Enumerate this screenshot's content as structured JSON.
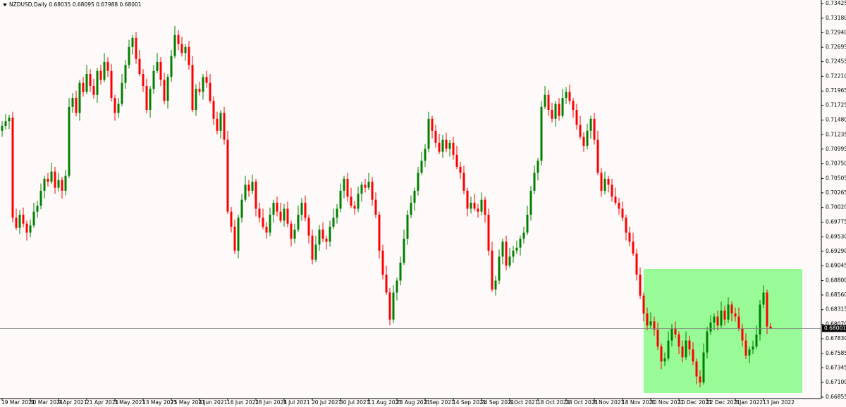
{
  "chart_data": {
    "type": "candlestick",
    "symbol": "NZDUSD,Daily",
    "up_color": "#008000",
    "down_color": "#ff0000",
    "ylim": [
      0.66831,
      0.73484
    ],
    "yticks": [
      0.73425,
      {
        "value": 0.7318,
        "label": "0.73180"
      },
      {
        "value": 0.7294,
        "label": "0.72940"
      },
      0.72695,
      0.72455,
      {
        "value": 0.7221,
        "label": "0.72210"
      },
      0.71965,
      0.71725,
      {
        "value": 0.7148,
        "label": "0.71480"
      },
      0.71235,
      0.70995,
      {
        "value": 0.7075,
        "label": "0.70750"
      },
      0.70505,
      0.70265,
      {
        "value": 0.7002,
        "label": "0.70020"
      },
      0.69775,
      {
        "value": 0.6953,
        "label": "0.69530"
      },
      {
        "value": 0.6929,
        "label": "0.69290"
      },
      0.69045,
      {
        "value": 0.688,
        "label": "0.68800"
      },
      {
        "value": 0.6856,
        "label": "0.68560"
      },
      0.68315,
      {
        "value": 0.6807,
        "label": "0.68070"
      },
      {
        "value": 0.6783,
        "label": "0.67830"
      },
      0.67585,
      0.67345,
      {
        "value": 0.671,
        "label": "0.67100"
      },
      0.66855
    ],
    "categories": [
      "19 Mar 2021",
      null,
      null,
      null,
      null,
      null,
      null,
      null,
      "30 Mar 2021",
      null,
      null,
      null,
      null,
      null,
      null,
      null,
      "9 Apr 2021",
      null,
      null,
      null,
      null,
      null,
      null,
      null,
      "21 Apr 2021",
      null,
      null,
      null,
      null,
      null,
      null,
      null,
      "3 May 2021",
      null,
      null,
      null,
      null,
      null,
      null,
      null,
      "13 May 2021",
      null,
      null,
      null,
      null,
      null,
      null,
      null,
      "25 May 2021",
      null,
      null,
      null,
      null,
      null,
      null,
      null,
      "4 Jun 2021",
      null,
      null,
      null,
      null,
      null,
      null,
      null,
      "16 Jun 2021",
      null,
      null,
      null,
      null,
      null,
      null,
      null,
      "28 Jun 2021",
      null,
      null,
      null,
      null,
      null,
      null,
      null,
      "8 Jul 2021",
      null,
      null,
      null,
      null,
      null,
      null,
      null,
      "20 Jul 2021",
      null,
      null,
      null,
      null,
      null,
      null,
      null,
      "30 Jul 2021",
      null,
      null,
      null,
      null,
      null,
      null,
      null,
      "11 Aug 2021",
      null,
      null,
      null,
      null,
      null,
      null,
      null,
      "23 Aug 2021",
      null,
      null,
      null,
      null,
      null,
      null,
      null,
      "2 Sep 2021",
      null,
      null,
      null,
      null,
      null,
      null,
      null,
      "14 Sep 2021",
      null,
      null,
      null,
      null,
      null,
      null,
      null,
      "24 Sep 2021",
      null,
      null,
      null,
      null,
      null,
      null,
      null,
      "6 Oct 2021",
      null,
      null,
      null,
      null,
      null,
      null,
      null,
      "18 Oct 2021",
      null,
      null,
      null,
      null,
      null,
      null,
      null,
      "28 Oct 2021",
      null,
      null,
      null,
      null,
      null,
      null,
      null,
      "8 Nov 2021",
      null,
      null,
      null,
      null,
      null,
      null,
      null,
      "18 Nov 2021",
      null,
      null,
      null,
      null,
      null,
      null,
      null,
      "30 Nov 2021",
      null,
      null,
      null,
      null,
      null,
      null,
      null,
      "10 Dec 2021",
      null,
      null,
      null,
      null,
      null,
      null,
      null,
      "22 Dec 2021",
      null,
      null,
      null,
      null,
      null,
      null,
      null,
      "3 Jan 2022",
      null,
      null,
      null,
      null,
      null,
      null,
      null,
      "13 Jan 2022",
      null,
      null
    ],
    "open": [
      0.713,
      0.7138,
      0.7146,
      0.7152,
      0.6985,
      0.6968,
      0.699,
      0.6975,
      0.696,
      0.6972,
      0.6995,
      0.7005,
      0.703,
      0.705,
      0.7045,
      0.7062,
      0.7035,
      0.7048,
      0.703,
      0.7055,
      0.717,
      0.7185,
      0.716,
      0.721,
      0.7195,
      0.7225,
      0.7205,
      0.719,
      0.723,
      0.7215,
      0.7245,
      0.723,
      0.7185,
      0.716,
      0.7175,
      0.721,
      0.724,
      0.727,
      0.7285,
      0.725,
      0.7225,
      0.7205,
      0.7165,
      0.72,
      0.723,
      0.7245,
      0.7215,
      0.718,
      0.722,
      0.7255,
      0.729,
      0.7275,
      0.726,
      0.727,
      0.724,
      0.7165,
      0.72,
      0.7195,
      0.722,
      0.721,
      0.718,
      0.715,
      0.713,
      0.716,
      0.7115,
      0.6995,
      0.697,
      0.693,
      0.6985,
      0.7015,
      0.704,
      0.703,
      0.7045,
      0.7,
      0.6985,
      0.697,
      0.696,
      0.699,
      0.701,
      0.6995,
      0.698,
      0.7,
      0.6975,
      0.695,
      0.6965,
      0.699,
      0.701,
      0.6985,
      0.6955,
      0.6915,
      0.694,
      0.6965,
      0.695,
      0.6945,
      0.697,
      0.6985,
      0.7,
      0.703,
      0.705,
      0.702,
      0.7005,
      0.7,
      0.7025,
      0.704,
      0.7035,
      0.7045,
      0.7015,
      0.699,
      0.693,
      0.689,
      0.686,
      0.6815,
      0.686,
      0.688,
      0.691,
      0.695,
      0.699,
      0.701,
      0.703,
      0.706,
      0.708,
      0.71,
      0.715,
      0.713,
      0.711,
      0.7095,
      0.7115,
      0.71,
      0.711,
      0.709,
      0.707,
      0.706,
      0.703,
      0.7,
      0.701,
      0.7,
      0.6995,
      0.7015,
      0.699,
      0.693,
      0.6865,
      0.688,
      0.692,
      0.6945,
      0.6905,
      0.692,
      0.693,
      0.6935,
      0.695,
      0.696,
      0.699,
      0.703,
      0.706,
      0.708,
      0.717,
      0.719,
      0.7165,
      0.715,
      0.7175,
      0.7155,
      0.7185,
      0.7195,
      0.718,
      0.7165,
      0.714,
      0.712,
      0.7105,
      0.713,
      0.715,
      0.7115,
      0.706,
      0.703,
      0.705,
      0.704,
      0.702,
      0.701,
      0.7,
      0.6985,
      0.696,
      0.6945,
      0.6925,
      0.689,
      0.6855,
      0.6825,
      0.6805,
      0.6812,
      0.6798,
      0.677,
      0.6745,
      0.675,
      0.678,
      0.68,
      0.679,
      0.677,
      0.6752,
      0.678,
      0.6765,
      0.6745,
      0.672,
      0.671,
      0.676,
      0.6795,
      0.681,
      0.682,
      0.6805,
      0.683,
      0.6815,
      0.684,
      0.6825,
      0.682,
      0.68,
      0.678,
      0.6755,
      0.6765,
      0.677,
      0.679,
      0.684,
      0.686,
      0.68035
    ],
    "high": [
      0.7146,
      0.7158,
      0.7157,
      0.7162,
      0.7,
      0.6998,
      0.7002,
      0.698,
      0.6982,
      0.701,
      0.7013,
      0.7042,
      0.7055,
      0.706,
      0.7077,
      0.707,
      0.706,
      0.7053,
      0.7065,
      0.7185,
      0.7193,
      0.7197,
      0.7215,
      0.722,
      0.724,
      0.7233,
      0.7217,
      0.7235,
      0.724,
      0.726,
      0.7253,
      0.7242,
      0.719,
      0.7185,
      0.7225,
      0.7248,
      0.7282,
      0.729,
      0.7295,
      0.7265,
      0.7233,
      0.7217,
      0.7205,
      0.724,
      0.726,
      0.7253,
      0.7227,
      0.7225,
      0.7265,
      0.7305,
      0.7298,
      0.7287,
      0.7275,
      0.728,
      0.7255,
      0.7208,
      0.7212,
      0.7225,
      0.723,
      0.7225,
      0.7188,
      0.7162,
      0.7165,
      0.717,
      0.713,
      0.7003,
      0.6982,
      0.699,
      0.7025,
      0.7055,
      0.7048,
      0.7057,
      0.705,
      0.701,
      0.7,
      0.6978,
      0.7002,
      0.7015,
      0.702,
      0.701,
      0.7008,
      0.7012,
      0.698,
      0.6975,
      0.7005,
      0.7018,
      0.7022,
      0.699,
      0.6965,
      0.6955,
      0.6973,
      0.6977,
      0.6955,
      0.698,
      0.7,
      0.7008,
      0.7042,
      0.7055,
      0.706,
      0.7035,
      0.7013,
      0.7037,
      0.7045,
      0.705,
      0.706,
      0.7053,
      0.7027,
      0.6995,
      0.694,
      0.6905,
      0.6868,
      0.6872,
      0.6885,
      0.692,
      0.6965,
      0.6998,
      0.7022,
      0.7035,
      0.707,
      0.7095,
      0.7108,
      0.7162,
      0.7155,
      0.714,
      0.7125,
      0.7123,
      0.7127,
      0.7115,
      0.712,
      0.7105,
      0.7078,
      0.7072,
      0.7035,
      0.702,
      0.7025,
      0.7008,
      0.7027,
      0.702,
      0.7,
      0.6945,
      0.6888,
      0.6932,
      0.695,
      0.6955,
      0.6935,
      0.6938,
      0.6947,
      0.6955,
      0.697,
      0.7005,
      0.7038,
      0.7072,
      0.7085,
      0.718,
      0.7205,
      0.7198,
      0.7177,
      0.718,
      0.7185,
      0.72,
      0.7203,
      0.7207,
      0.7185,
      0.7175,
      0.7155,
      0.7128,
      0.7142,
      0.7155,
      0.716,
      0.713,
      0.7068,
      0.7062,
      0.7055,
      0.705,
      0.7035,
      0.7018,
      0.7012,
      0.699,
      0.697,
      0.696,
      0.6933,
      0.6902,
      0.686,
      0.6835,
      0.6827,
      0.682,
      0.681,
      0.6775,
      0.676,
      0.6795,
      0.6808,
      0.6812,
      0.6795,
      0.678,
      0.6795,
      0.6788,
      0.6777,
      0.675,
      0.673,
      0.6775,
      0.6803,
      0.6822,
      0.6825,
      0.683,
      0.6845,
      0.6838,
      0.6852,
      0.6845,
      0.6835,
      0.6835,
      0.6808,
      0.6792,
      0.677,
      0.678,
      0.6805,
      0.6848,
      0.6872,
      0.6865,
      0.68095
    ],
    "low": [
      0.712,
      0.7132,
      0.7133,
      0.6977,
      0.6964,
      0.6958,
      0.6969,
      0.6947,
      0.6952,
      0.6968,
      0.6985,
      0.6999,
      0.7017,
      0.7037,
      0.7041,
      0.7025,
      0.7029,
      0.7017,
      0.7022,
      0.7051,
      0.716,
      0.7154,
      0.7147,
      0.7187,
      0.7191,
      0.7195,
      0.7184,
      0.7177,
      0.7207,
      0.7211,
      0.722,
      0.7179,
      0.7147,
      0.7152,
      0.7171,
      0.72,
      0.7234,
      0.7257,
      0.7242,
      0.7221,
      0.7195,
      0.7159,
      0.7152,
      0.7192,
      0.7226,
      0.7205,
      0.7174,
      0.7167,
      0.7212,
      0.7251,
      0.7265,
      0.7254,
      0.7247,
      0.7232,
      0.7161,
      0.7155,
      0.7189,
      0.7182,
      0.7202,
      0.7176,
      0.714,
      0.7124,
      0.7117,
      0.7107,
      0.6991,
      0.696,
      0.6924,
      0.6917,
      0.6977,
      0.7011,
      0.702,
      0.7024,
      0.6987,
      0.6977,
      0.6966,
      0.695,
      0.6954,
      0.6977,
      0.6987,
      0.6976,
      0.697,
      0.6969,
      0.6937,
      0.6942,
      0.6961,
      0.698,
      0.6979,
      0.6942,
      0.6907,
      0.6911,
      0.693,
      0.6944,
      0.6932,
      0.6937,
      0.6966,
      0.6975,
      0.6994,
      0.7017,
      0.7012,
      0.7001,
      0.699,
      0.6994,
      0.7012,
      0.7027,
      0.7031,
      0.7005,
      0.6984,
      0.6917,
      0.6882,
      0.6856,
      0.6805,
      0.6809,
      0.6847,
      0.6872,
      0.6906,
      0.694,
      0.6984,
      0.6997,
      0.7022,
      0.7056,
      0.707,
      0.7094,
      0.7117,
      0.7102,
      0.7091,
      0.7085,
      0.7094,
      0.7087,
      0.7082,
      0.7066,
      0.705,
      0.7024,
      0.6987,
      0.6992,
      0.6996,
      0.6985,
      0.6989,
      0.6977,
      0.6922,
      0.6861,
      0.6855,
      0.6874,
      0.6907,
      0.6897,
      0.6901,
      0.691,
      0.6924,
      0.6922,
      0.6942,
      0.6956,
      0.698,
      0.7024,
      0.7047,
      0.7072,
      0.7166,
      0.7155,
      0.7144,
      0.7137,
      0.7147,
      0.7151,
      0.7175,
      0.7174,
      0.7152,
      0.7132,
      0.7116,
      0.7095,
      0.7099,
      0.7117,
      0.7107,
      0.7056,
      0.702,
      0.7024,
      0.7027,
      0.7012,
      0.7006,
      0.699,
      0.6979,
      0.6947,
      0.6937,
      0.6921,
      0.688,
      0.6849,
      0.6812,
      0.6797,
      0.6801,
      0.6788,
      0.6764,
      0.6732,
      0.6737,
      0.6746,
      0.677,
      0.6784,
      0.6757,
      0.6744,
      0.6748,
      0.6755,
      0.6739,
      0.6707,
      0.6702,
      0.6706,
      0.675,
      0.6789,
      0.6797,
      0.6797,
      0.6801,
      0.6805,
      0.6809,
      0.6812,
      0.6812,
      0.6796,
      0.677,
      0.6749,
      0.6742,
      0.6757,
      0.6766,
      0.678,
      0.6834,
      0.67905,
      0.67988
    ],
    "close": [
      0.7138,
      0.7146,
      0.7152,
      0.6985,
      0.6968,
      0.699,
      0.6975,
      0.696,
      0.6972,
      0.6995,
      0.7005,
      0.703,
      0.705,
      0.7045,
      0.7062,
      0.7035,
      0.7048,
      0.703,
      0.7055,
      0.717,
      0.7185,
      0.716,
      0.721,
      0.7195,
      0.7225,
      0.7205,
      0.719,
      0.723,
      0.7215,
      0.7245,
      0.723,
      0.7185,
      0.716,
      0.7175,
      0.721,
      0.724,
      0.727,
      0.7285,
      0.725,
      0.7225,
      0.7205,
      0.7165,
      0.72,
      0.723,
      0.7245,
      0.7215,
      0.718,
      0.722,
      0.7255,
      0.729,
      0.7275,
      0.726,
      0.727,
      0.724,
      0.7165,
      0.72,
      0.7195,
      0.722,
      0.721,
      0.718,
      0.715,
      0.713,
      0.716,
      0.7115,
      0.6995,
      0.697,
      0.693,
      0.6985,
      0.7015,
      0.704,
      0.703,
      0.7045,
      0.7,
      0.6985,
      0.697,
      0.696,
      0.699,
      0.701,
      0.6995,
      0.698,
      0.7,
      0.6975,
      0.695,
      0.6965,
      0.699,
      0.701,
      0.6985,
      0.6955,
      0.6915,
      0.694,
      0.6965,
      0.695,
      0.6945,
      0.697,
      0.6985,
      0.7,
      0.703,
      0.705,
      0.702,
      0.7005,
      0.7,
      0.7025,
      0.704,
      0.7035,
      0.7045,
      0.7015,
      0.699,
      0.693,
      0.689,
      0.686,
      0.6815,
      0.686,
      0.688,
      0.691,
      0.695,
      0.699,
      0.701,
      0.703,
      0.706,
      0.708,
      0.71,
      0.715,
      0.713,
      0.711,
      0.7095,
      0.7115,
      0.71,
      0.711,
      0.709,
      0.707,
      0.706,
      0.703,
      0.7,
      0.701,
      0.7,
      0.6995,
      0.7015,
      0.699,
      0.693,
      0.6865,
      0.688,
      0.692,
      0.6945,
      0.6905,
      0.692,
      0.693,
      0.6935,
      0.695,
      0.696,
      0.699,
      0.703,
      0.706,
      0.708,
      0.717,
      0.719,
      0.7165,
      0.715,
      0.7175,
      0.7155,
      0.7185,
      0.7195,
      0.718,
      0.7165,
      0.714,
      0.712,
      0.7105,
      0.713,
      0.715,
      0.7115,
      0.706,
      0.703,
      0.705,
      0.704,
      0.702,
      0.701,
      0.7,
      0.6985,
      0.696,
      0.6945,
      0.6925,
      0.689,
      0.6855,
      0.6825,
      0.6805,
      0.6812,
      0.6798,
      0.677,
      0.6745,
      0.675,
      0.678,
      0.68,
      0.679,
      0.677,
      0.6752,
      0.678,
      0.6765,
      0.6745,
      0.672,
      0.671,
      0.676,
      0.6795,
      0.681,
      0.682,
      0.6805,
      0.683,
      0.6815,
      0.684,
      0.6825,
      0.682,
      0.68,
      0.678,
      0.6755,
      0.6765,
      0.677,
      0.679,
      0.684,
      0.686,
      0.68035,
      0.68001
    ]
  }
}
